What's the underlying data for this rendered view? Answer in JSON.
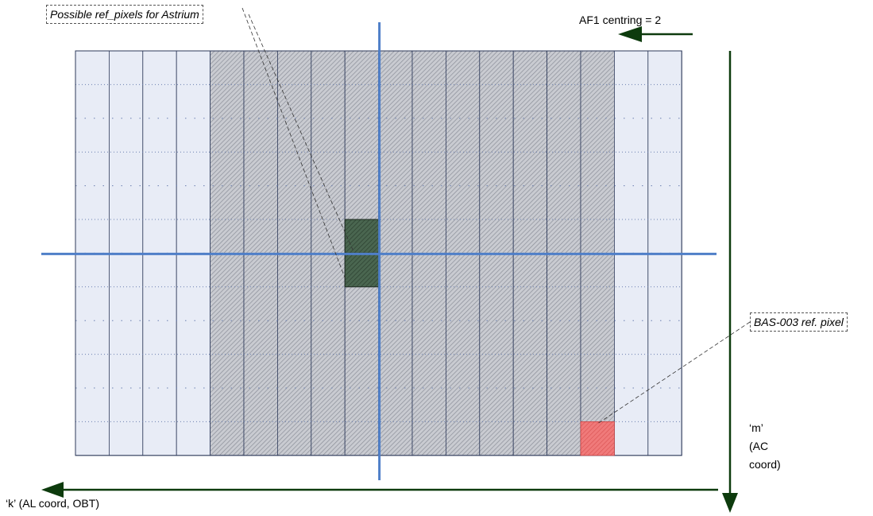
{
  "callouts": {
    "astrium": "Possible ref_pixels for Astrium",
    "bas003": "BAS-003 ref. pixel"
  },
  "labels": {
    "af1_centring": "AF1 centring = 2",
    "m_axis_line1": "‘m’",
    "m_axis_line2": "(AC",
    "m_axis_line3": "coord)",
    "k_axis": "‘k’ (AL coord, OBT)"
  },
  "grid": {
    "columns": 18,
    "rows": 12,
    "hatched_columns_from": 4,
    "hatched_columns_to": 16,
    "ref_pixels_astrium": [
      {
        "col": 8,
        "row": 5
      },
      {
        "col": 8,
        "row": 6
      }
    ],
    "ref_pixel_bas003": {
      "col": 15,
      "row": 11
    }
  },
  "colors": {
    "light_cell": "#e8ecf6",
    "hatched_cell": "#c4c6cc",
    "hatch_line": "#8a8e98",
    "ref_astrium": "#3f5a45",
    "ref_bas003": "#f07070",
    "axis_line": "#4f7fc8",
    "arrow": "#0d3b0d"
  }
}
